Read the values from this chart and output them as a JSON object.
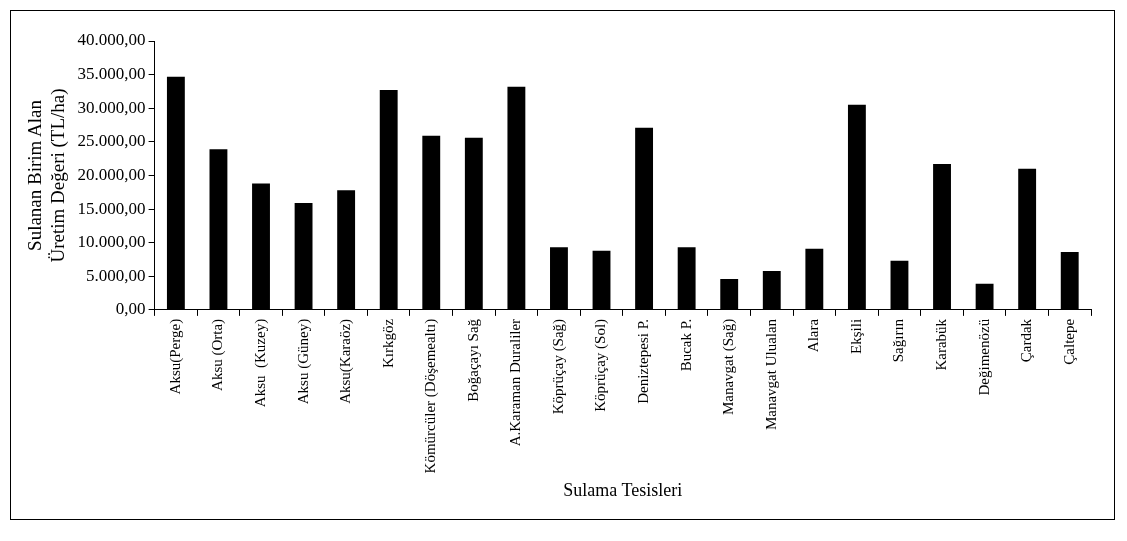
{
  "chart_data": {
    "type": "bar",
    "xlabel": "Sulama Tesisleri",
    "ylabel": "Sulanan Birim Alan\nÜretim Değeri (TL/ha)",
    "categories": [
      "Aksu(Perge)",
      "Aksu (Orta)",
      "Aksu  (Kuzey)",
      "Aksu (Güney)",
      "Aksu(Karaöz)",
      "Kırkgöz",
      "Kömürcüler (Döşemealtı)",
      "Boğaçayı Sağ",
      "A.Karaman Duraliler",
      "Köprüçay (Sağ)",
      "Köprüçay (Sol)",
      "Deniztepesi P.",
      "Bucak P.",
      "Manavgat (Sağ)",
      "Manavgat Ulualan",
      "Alara",
      "Ekşili",
      "Sağırın",
      "Karabük",
      "Değimenözü",
      "Çardak",
      "Çaltepe"
    ],
    "values": [
      34700,
      23900,
      18800,
      15900,
      17800,
      32700,
      25900,
      25600,
      33200,
      9300,
      8800,
      27100,
      9300,
      4600,
      5800,
      9100,
      30500,
      7300,
      21700,
      3900,
      21000,
      8600
    ],
    "color": "#000000",
    "ylim": [
      0,
      40000
    ],
    "yticks": [
      {
        "value": 0,
        "label": "0,00"
      },
      {
        "value": 5000,
        "label": "5.000,00"
      },
      {
        "value": 10000,
        "label": "10.000,00"
      },
      {
        "value": 15000,
        "label": "15.000,00"
      },
      {
        "value": 20000,
        "label": "20.000,00"
      },
      {
        "value": 25000,
        "label": "25.000,00"
      },
      {
        "value": 30000,
        "label": "30.000,00"
      },
      {
        "value": 35000,
        "label": "35.000,00"
      },
      {
        "value": 40000,
        "label": "40.000,00"
      }
    ],
    "grid": false
  }
}
